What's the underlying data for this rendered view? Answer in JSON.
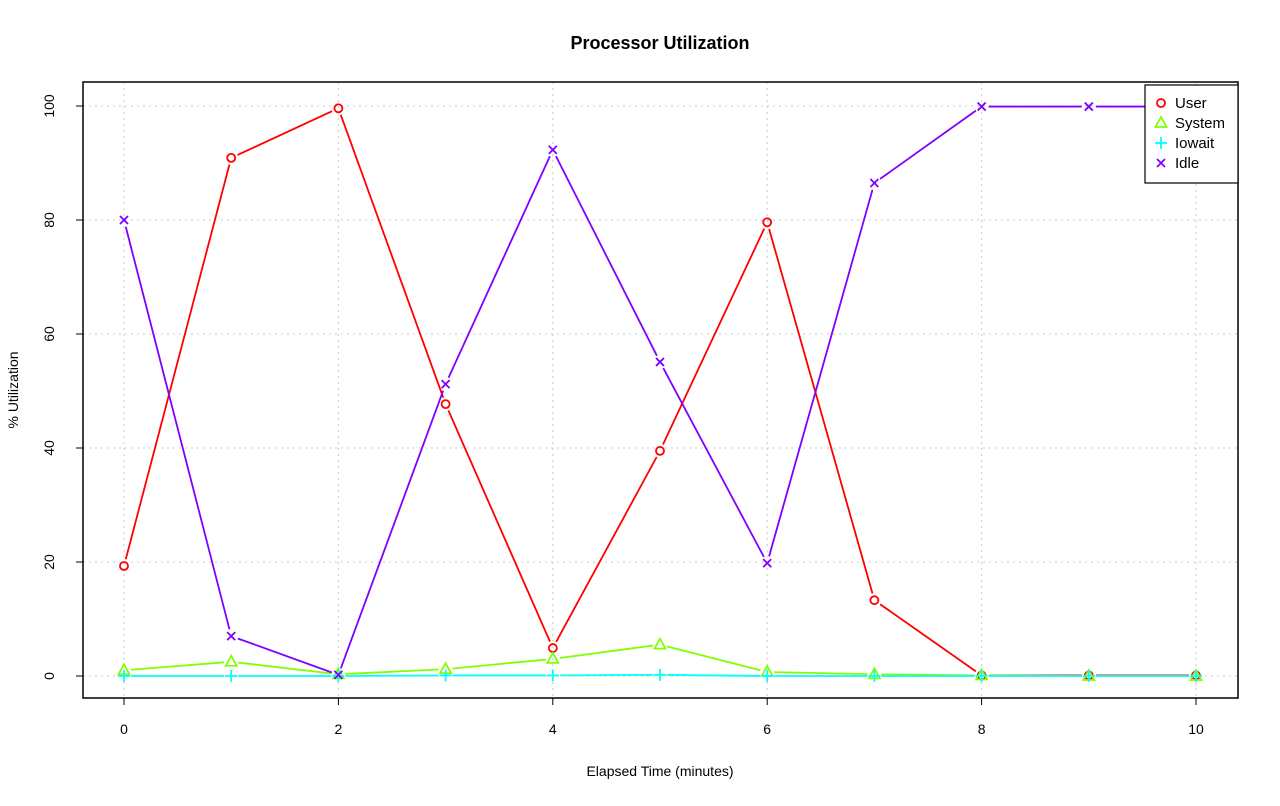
{
  "chart_data": {
    "type": "line",
    "title": "Processor Utilization",
    "xlabel": "Elapsed Time (minutes)",
    "ylabel": "% Utilization",
    "xlim": [
      0,
      10
    ],
    "ylim": [
      0,
      100
    ],
    "xticks": [
      0,
      2,
      4,
      6,
      8,
      10
    ],
    "yticks": [
      0,
      20,
      40,
      60,
      80,
      100
    ],
    "grid": true,
    "legend_position": "top-right",
    "x": [
      0,
      1,
      2,
      3,
      4,
      5,
      6,
      7,
      8,
      9,
      10
    ],
    "series": [
      {
        "name": "User",
        "color": "#FF0000",
        "marker": "circle",
        "values": [
          19.3,
          90.9,
          99.6,
          47.7,
          4.9,
          39.5,
          79.6,
          13.3,
          0.1,
          0.1,
          0.1
        ]
      },
      {
        "name": "System",
        "color": "#80FF00",
        "marker": "triangle",
        "values": [
          1.0,
          2.5,
          0.3,
          1.2,
          3.0,
          5.5,
          0.7,
          0.3,
          0.1,
          0.0,
          0.0
        ]
      },
      {
        "name": "Iowait",
        "color": "#00FFFF",
        "marker": "plus",
        "values": [
          0.0,
          0.0,
          0.0,
          0.1,
          0.1,
          0.2,
          0.0,
          0.0,
          0.0,
          0.0,
          0.0
        ]
      },
      {
        "name": "Idle",
        "color": "#8000FF",
        "marker": "cross",
        "values": [
          80.0,
          7.0,
          0.2,
          51.2,
          92.3,
          55.1,
          19.8,
          86.5,
          99.9,
          99.9,
          99.9
        ]
      }
    ]
  }
}
